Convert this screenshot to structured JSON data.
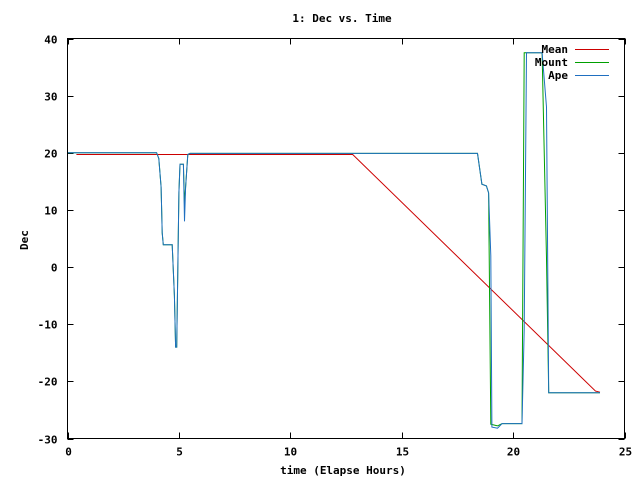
{
  "chart_data": {
    "type": "line",
    "title": "1: Dec vs. Time",
    "xlabel": "time (Elapse Hours)",
    "ylabel": "Dec",
    "xlim": [
      0,
      25
    ],
    "ylim": [
      -30,
      40
    ],
    "xticks": [
      0,
      5,
      10,
      15,
      20,
      25
    ],
    "yticks": [
      -30,
      -20,
      -10,
      0,
      10,
      20,
      30,
      40
    ],
    "grid": false,
    "legend_position": "top-right",
    "series": [
      {
        "name": "Mean",
        "color": "#cc0000",
        "points": [
          [
            0.4,
            19.7
          ],
          [
            12.8,
            19.7
          ],
          [
            23.7,
            -21.7
          ],
          [
            23.9,
            -21.9
          ]
        ]
      },
      {
        "name": "Mount",
        "color": "#00a000",
        "points": [
          [
            0.0,
            20.0
          ],
          [
            4.0,
            20.0
          ],
          [
            4.1,
            19.0
          ],
          [
            4.2,
            14.0
          ],
          [
            4.25,
            6.0
          ],
          [
            4.3,
            3.9
          ],
          [
            4.7,
            3.9
          ],
          [
            4.8,
            -5.0
          ],
          [
            4.85,
            -14.0
          ],
          [
            4.9,
            -14.0
          ],
          [
            5.0,
            13.0
          ],
          [
            5.05,
            18.0
          ],
          [
            5.2,
            18.0
          ],
          [
            5.25,
            11.0
          ],
          [
            5.3,
            14.0
          ],
          [
            5.4,
            19.7
          ],
          [
            5.5,
            19.9
          ],
          [
            18.4,
            19.9
          ],
          [
            18.6,
            14.5
          ],
          [
            18.8,
            14.2
          ],
          [
            18.9,
            13.0
          ],
          [
            19.0,
            -27.5
          ],
          [
            19.3,
            -27.8
          ],
          [
            19.5,
            -27.4
          ],
          [
            20.4,
            -27.4
          ],
          [
            20.5,
            37.5
          ],
          [
            21.3,
            37.5
          ],
          [
            21.5,
            1.5
          ],
          [
            21.6,
            -22.0
          ],
          [
            23.9,
            -22.0
          ]
        ]
      },
      {
        "name": "Ape",
        "color": "#1f6fc0",
        "points": [
          [
            0.0,
            20.0
          ],
          [
            4.0,
            20.0
          ],
          [
            4.1,
            19.0
          ],
          [
            4.2,
            14.0
          ],
          [
            4.25,
            6.0
          ],
          [
            4.3,
            3.9
          ],
          [
            4.7,
            3.9
          ],
          [
            4.8,
            -5.0
          ],
          [
            4.85,
            -14.0
          ],
          [
            4.9,
            -14.0
          ],
          [
            5.0,
            13.0
          ],
          [
            5.05,
            18.0
          ],
          [
            5.2,
            18.0
          ],
          [
            5.25,
            8.0
          ],
          [
            5.3,
            14.0
          ],
          [
            5.4,
            19.7
          ],
          [
            5.5,
            19.9
          ],
          [
            18.4,
            19.9
          ],
          [
            18.6,
            14.5
          ],
          [
            18.8,
            14.2
          ],
          [
            18.9,
            13.0
          ],
          [
            19.0,
            2.0
          ],
          [
            19.05,
            -28.0
          ],
          [
            19.3,
            -28.2
          ],
          [
            19.5,
            -27.4
          ],
          [
            20.4,
            -27.4
          ],
          [
            20.5,
            -11.0
          ],
          [
            20.6,
            37.5
          ],
          [
            21.3,
            37.5
          ],
          [
            21.5,
            28.0
          ],
          [
            21.6,
            -22.0
          ],
          [
            23.9,
            -22.0
          ]
        ]
      }
    ]
  }
}
